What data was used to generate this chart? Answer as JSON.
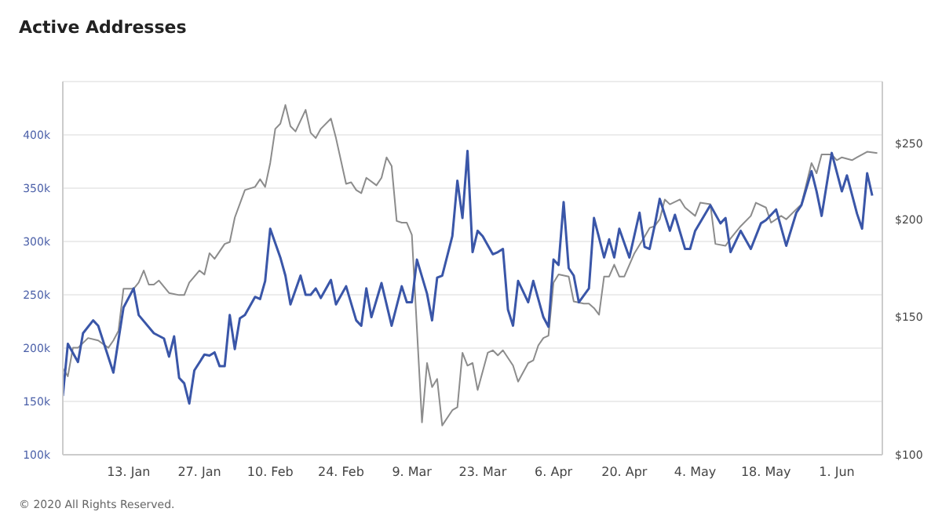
{
  "chart_data": {
    "type": "line",
    "title": "Active Addresses",
    "annotations": [
      "© 2020 All Rights Reserved."
    ],
    "xlim": [
      "2019-12-31",
      "2020-06-10"
    ],
    "xticks": [
      {
        "value": "2020-01-13",
        "label": "13. Jan"
      },
      {
        "value": "2020-01-27",
        "label": "27. Jan"
      },
      {
        "value": "2020-02-10",
        "label": "10. Feb"
      },
      {
        "value": "2020-02-24",
        "label": "24. Feb"
      },
      {
        "value": "2020-03-09",
        "label": "9. Mar"
      },
      {
        "value": "2020-03-23",
        "label": "23. Mar"
      },
      {
        "value": "2020-04-06",
        "label": "6. Apr"
      },
      {
        "value": "2020-04-20",
        "label": "20. Apr"
      },
      {
        "value": "2020-05-04",
        "label": "4. May"
      },
      {
        "value": "2020-05-18",
        "label": "18. May"
      },
      {
        "value": "2020-06-01",
        "label": "1. Jun"
      }
    ],
    "ylim": [
      100000,
      450000
    ],
    "yticks": [
      {
        "value": 100000,
        "label": "100k"
      },
      {
        "value": 150000,
        "label": "150k"
      },
      {
        "value": 200000,
        "label": "200k"
      },
      {
        "value": 250000,
        "label": "250k"
      },
      {
        "value": 300000,
        "label": "300k"
      },
      {
        "value": 350000,
        "label": "350k"
      },
      {
        "value": 400000,
        "label": "400k"
      },
      {
        "value": 450000,
        "label": null
      }
    ],
    "y2lim": [
      100,
      300
    ],
    "y2ticks": [
      {
        "value": 100,
        "label": "$100"
      },
      {
        "value": 150,
        "label": "$150"
      },
      {
        "value": 200,
        "label": "$200"
      },
      {
        "value": 250,
        "label": "$250"
      }
    ],
    "log": "y2",
    "grid": "y",
    "line_style": "solid",
    "series": [
      {
        "color": "#8c8c8c",
        "axis": "y2",
        "x": [
          "2019-12-31",
          "2020-01-01",
          "2020-01-02",
          "2020-01-03",
          "2020-01-05",
          "2020-01-07",
          "2020-01-09",
          "2020-01-10",
          "2020-01-11",
          "2020-01-12",
          "2020-01-14",
          "2020-01-15",
          "2020-01-16",
          "2020-01-17",
          "2020-01-18",
          "2020-01-19",
          "2020-01-21",
          "2020-01-23",
          "2020-01-24",
          "2020-01-25",
          "2020-01-27",
          "2020-01-28",
          "2020-01-29",
          "2020-01-30",
          "2020-02-01",
          "2020-02-02",
          "2020-02-03",
          "2020-02-05",
          "2020-02-07",
          "2020-02-08",
          "2020-02-09",
          "2020-02-10",
          "2020-02-11",
          "2020-02-12",
          "2020-02-13",
          "2020-02-14",
          "2020-02-15",
          "2020-02-17",
          "2020-02-18",
          "2020-02-19",
          "2020-02-20",
          "2020-02-22",
          "2020-02-23",
          "2020-02-25",
          "2020-02-26",
          "2020-02-27",
          "2020-02-28",
          "2020-02-29",
          "2020-03-02",
          "2020-03-03",
          "2020-03-04",
          "2020-03-05",
          "2020-03-06",
          "2020-03-07",
          "2020-03-08",
          "2020-03-09",
          "2020-03-11",
          "2020-03-12",
          "2020-03-13",
          "2020-03-14",
          "2020-03-15",
          "2020-03-17",
          "2020-03-18",
          "2020-03-19",
          "2020-03-20",
          "2020-03-21",
          "2020-03-22",
          "2020-03-24",
          "2020-03-25",
          "2020-03-26",
          "2020-03-27",
          "2020-03-29",
          "2020-03-30",
          "2020-04-01",
          "2020-04-02",
          "2020-04-03",
          "2020-04-04",
          "2020-04-05",
          "2020-04-06",
          "2020-04-07",
          "2020-04-09",
          "2020-04-10",
          "2020-04-12",
          "2020-04-13",
          "2020-04-14",
          "2020-04-15",
          "2020-04-16",
          "2020-04-17",
          "2020-04-18",
          "2020-04-19",
          "2020-04-20",
          "2020-04-22",
          "2020-04-24",
          "2020-04-25",
          "2020-04-26",
          "2020-04-27",
          "2020-04-28",
          "2020-04-29",
          "2020-05-01",
          "2020-05-02",
          "2020-05-04",
          "2020-05-05",
          "2020-05-07",
          "2020-05-08",
          "2020-05-10",
          "2020-05-11",
          "2020-05-13",
          "2020-05-15",
          "2020-05-16",
          "2020-05-18",
          "2020-05-19",
          "2020-05-21",
          "2020-05-22",
          "2020-05-24",
          "2020-05-25",
          "2020-05-27",
          "2020-05-28",
          "2020-05-29",
          "2020-05-31",
          "2020-06-01",
          "2020-06-02",
          "2020-06-04",
          "2020-06-05",
          "2020-06-07",
          "2020-06-09"
        ],
        "values": [
          129,
          126,
          137,
          137,
          141,
          140,
          137,
          140,
          144,
          163,
          163,
          166,
          172,
          165,
          165,
          167,
          161,
          160,
          160,
          166,
          172,
          170,
          181,
          178,
          186,
          187,
          201,
          218,
          220,
          225,
          220,
          236,
          261,
          265,
          280,
          263,
          259,
          276,
          258,
          254,
          261,
          269,
          254,
          222,
          223,
          218,
          216,
          226,
          221,
          226,
          240,
          234,
          199,
          198,
          198,
          191,
          110,
          131,
          122,
          125,
          109,
          114,
          115,
          135,
          130,
          131,
          121,
          135,
          136,
          134,
          136,
          130,
          124,
          131,
          132,
          138,
          141,
          142,
          166,
          170,
          169,
          157,
          156,
          156,
          154,
          151,
          169,
          169,
          175,
          169,
          169,
          181,
          190,
          195,
          196,
          200,
          212,
          209,
          212,
          207,
          202,
          210,
          209,
          186,
          185,
          189,
          196,
          202,
          210,
          207,
          198,
          202,
          200,
          206,
          209,
          236,
          229,
          242,
          242,
          238,
          240,
          238,
          240,
          244,
          243
        ]
      },
      {
        "color": "#3a56a8",
        "x": [
          "2019-12-31",
          "2020-01-01",
          "2020-01-03",
          "2020-01-04",
          "2020-01-06",
          "2020-01-07",
          "2020-01-10",
          "2020-01-12",
          "2020-01-14",
          "2020-01-15",
          "2020-01-18",
          "2020-01-20",
          "2020-01-21",
          "2020-01-22",
          "2020-01-23",
          "2020-01-24",
          "2020-01-25",
          "2020-01-26",
          "2020-01-28",
          "2020-01-29",
          "2020-01-30",
          "2020-01-31",
          "2020-02-01",
          "2020-02-02",
          "2020-02-03",
          "2020-02-04",
          "2020-02-05",
          "2020-02-07",
          "2020-02-08",
          "2020-02-09",
          "2020-02-10",
          "2020-02-12",
          "2020-02-13",
          "2020-02-14",
          "2020-02-16",
          "2020-02-17",
          "2020-02-18",
          "2020-02-19",
          "2020-02-20",
          "2020-02-22",
          "2020-02-23",
          "2020-02-25",
          "2020-02-27",
          "2020-02-28",
          "2020-02-29",
          "2020-03-01",
          "2020-03-03",
          "2020-03-05",
          "2020-03-07",
          "2020-03-08",
          "2020-03-09",
          "2020-03-10",
          "2020-03-12",
          "2020-03-13",
          "2020-03-14",
          "2020-03-15",
          "2020-03-17",
          "2020-03-18",
          "2020-03-19",
          "2020-03-20",
          "2020-03-21",
          "2020-03-22",
          "2020-03-23",
          "2020-03-25",
          "2020-03-26",
          "2020-03-27",
          "2020-03-28",
          "2020-03-29",
          "2020-03-30",
          "2020-03-31",
          "2020-04-01",
          "2020-04-02",
          "2020-04-04",
          "2020-04-05",
          "2020-04-06",
          "2020-04-07",
          "2020-04-08",
          "2020-04-09",
          "2020-04-10",
          "2020-04-11",
          "2020-04-13",
          "2020-04-14",
          "2020-04-16",
          "2020-04-17",
          "2020-04-18",
          "2020-04-19",
          "2020-04-21",
          "2020-04-23",
          "2020-04-24",
          "2020-04-25",
          "2020-04-26",
          "2020-04-27",
          "2020-04-29",
          "2020-04-30",
          "2020-05-02",
          "2020-05-03",
          "2020-05-04",
          "2020-05-07",
          "2020-05-09",
          "2020-05-10",
          "2020-05-11",
          "2020-05-13",
          "2020-05-15",
          "2020-05-17",
          "2020-05-18",
          "2020-05-20",
          "2020-05-22",
          "2020-05-24",
          "2020-05-25",
          "2020-05-27",
          "2020-05-28",
          "2020-05-29",
          "2020-05-31",
          "2020-06-02",
          "2020-06-03",
          "2020-06-05",
          "2020-06-06",
          "2020-06-07",
          "2020-06-08"
        ],
        "values": [
          155000,
          204000,
          187000,
          214000,
          226000,
          221000,
          177000,
          238000,
          256000,
          231000,
          214000,
          209000,
          192000,
          211000,
          172000,
          167000,
          148000,
          179000,
          194000,
          193000,
          196000,
          183000,
          183000,
          231000,
          199000,
          228000,
          231000,
          248000,
          246000,
          263000,
          312000,
          285000,
          268000,
          241000,
          268000,
          250000,
          250000,
          256000,
          247000,
          264000,
          241000,
          258000,
          226000,
          221000,
          256000,
          229000,
          261000,
          221000,
          258000,
          243000,
          243000,
          283000,
          251000,
          226000,
          266000,
          268000,
          305000,
          357000,
          322000,
          385000,
          290000,
          310000,
          305000,
          288000,
          290000,
          293000,
          236000,
          221000,
          263000,
          253000,
          243000,
          263000,
          229000,
          220000,
          283000,
          278000,
          337000,
          275000,
          268000,
          243000,
          256000,
          322000,
          285000,
          302000,
          285000,
          312000,
          285000,
          327000,
          295000,
          293000,
          315000,
          340000,
          310000,
          325000,
          293000,
          293000,
          310000,
          334000,
          317000,
          322000,
          290000,
          310000,
          293000,
          317000,
          320000,
          330000,
          296000,
          327000,
          334000,
          366000,
          347000,
          324000,
          383000,
          347000,
          362000,
          326000,
          312000,
          364000,
          343000
        ]
      }
    ]
  }
}
